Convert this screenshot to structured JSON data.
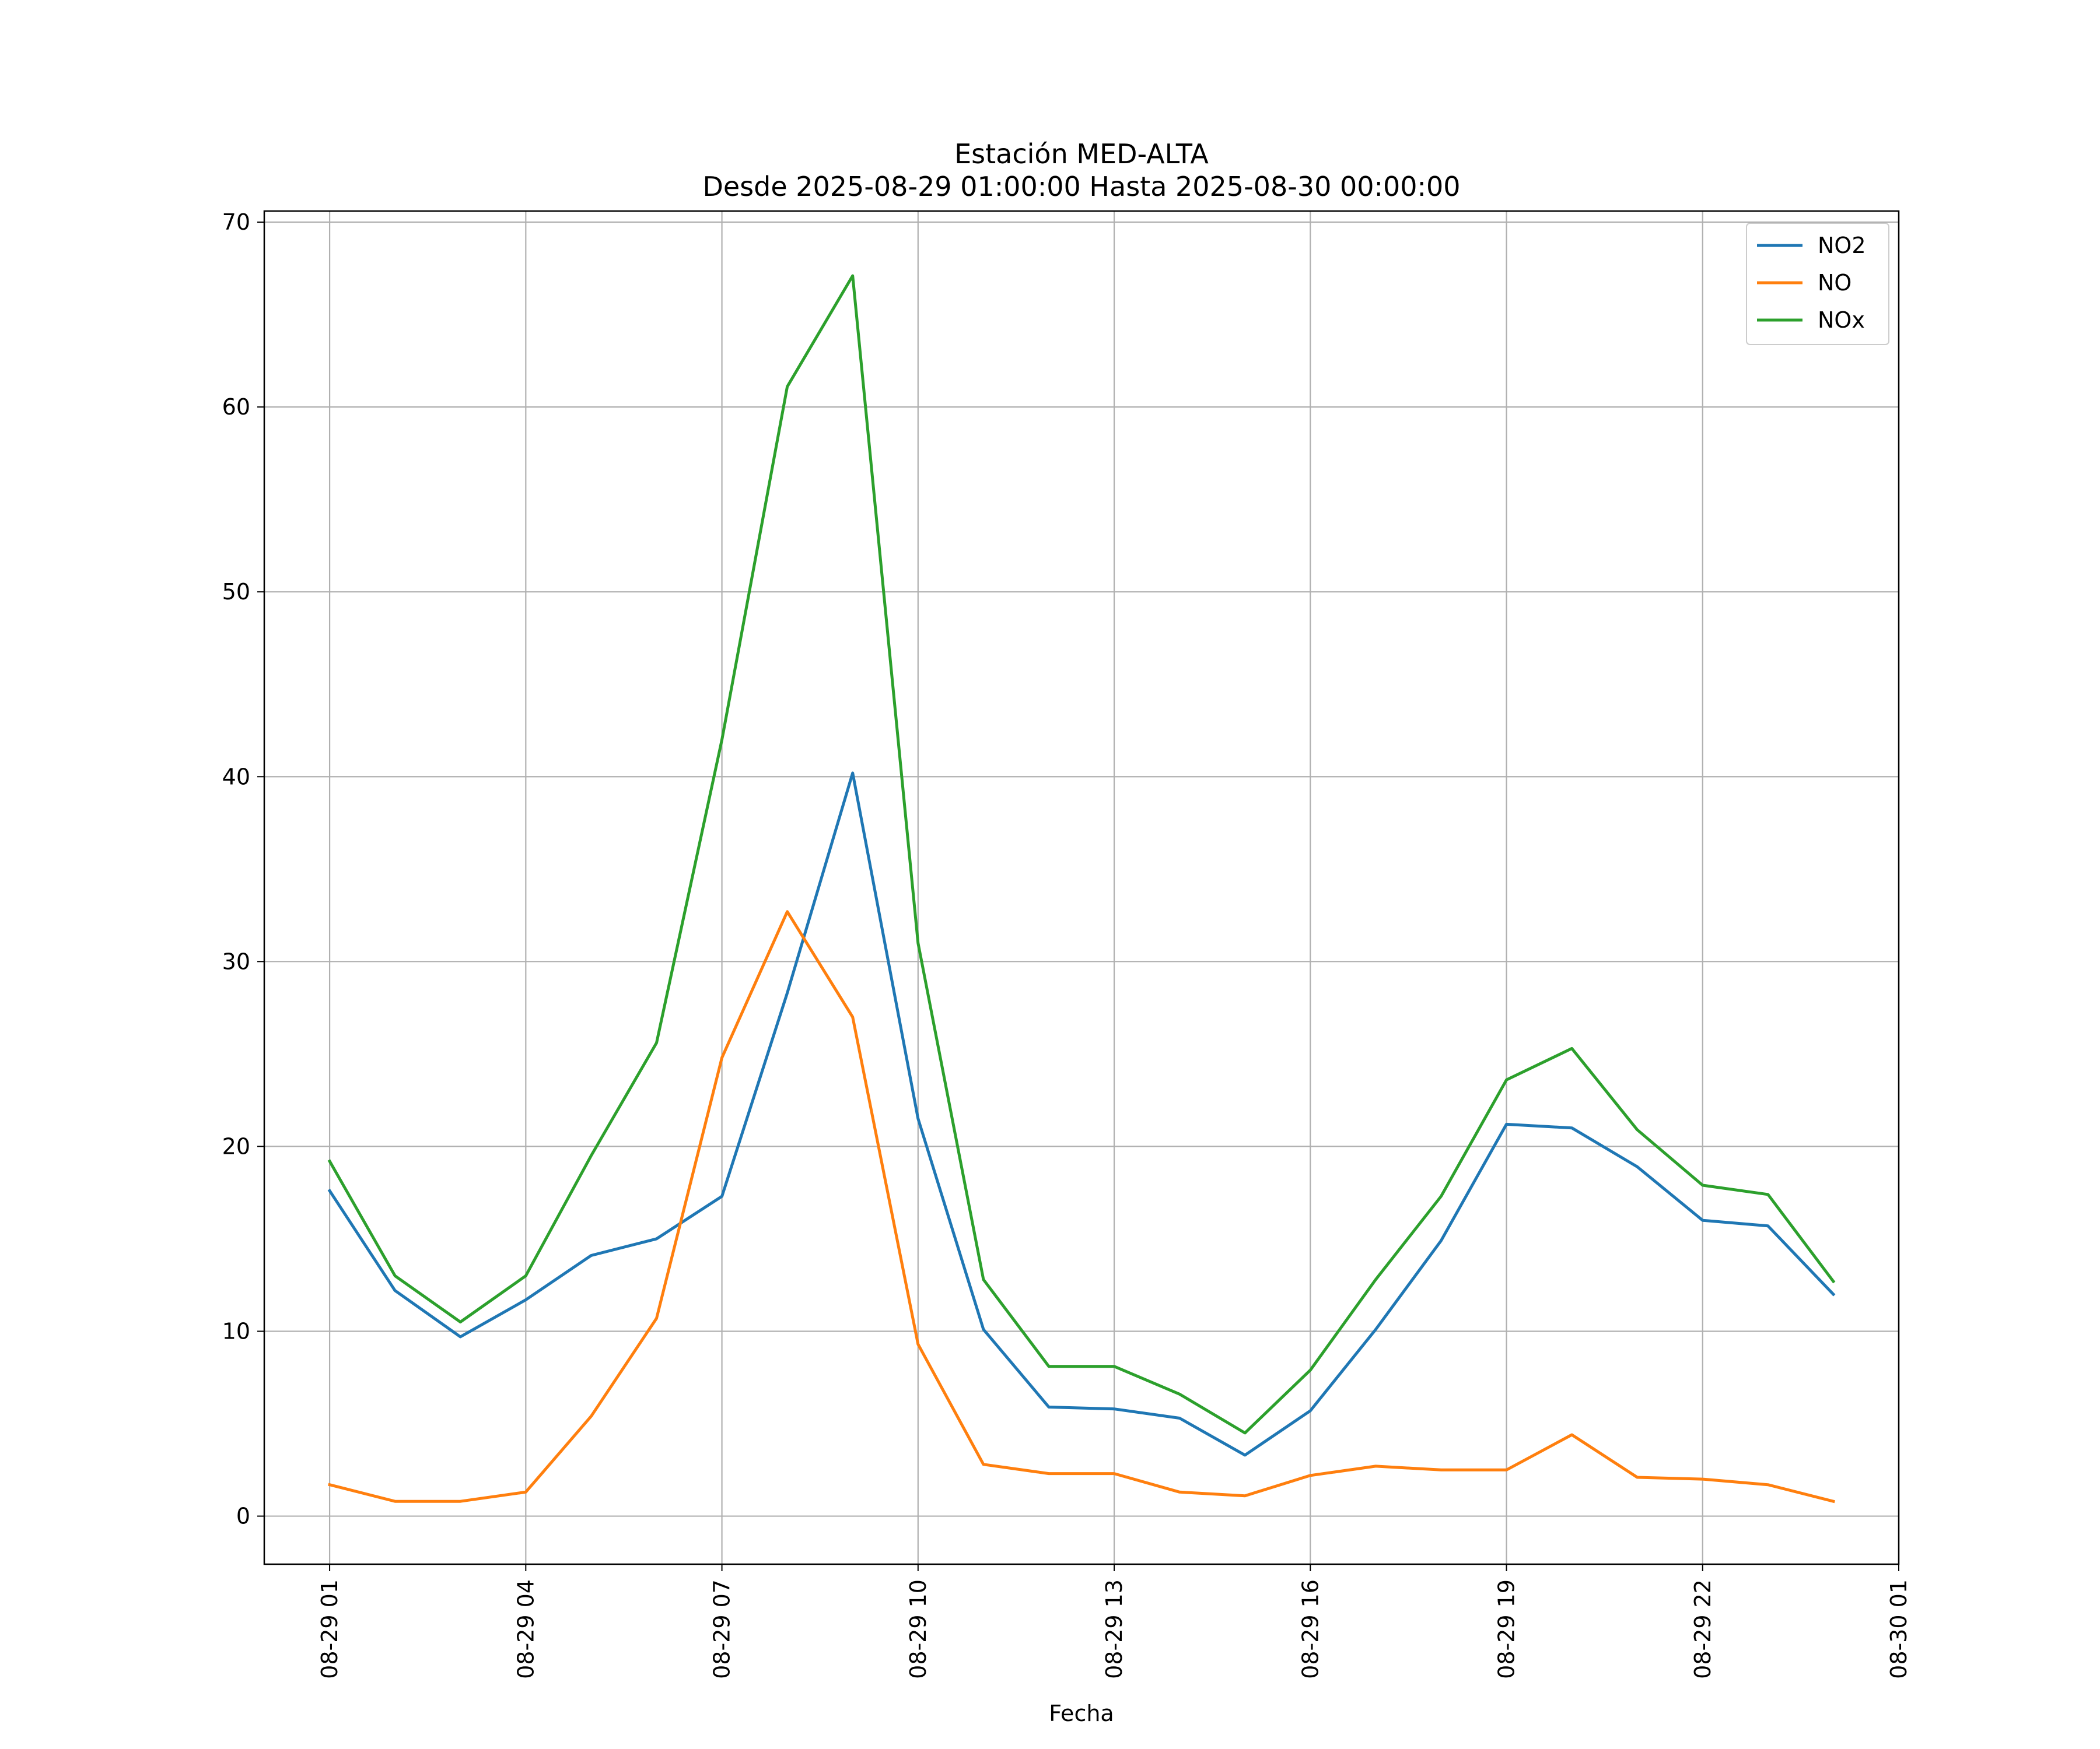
{
  "chart_data": {
    "type": "line",
    "title": "Estación MED-ALTA",
    "subtitle": "Desde 2025-08-29 01:00:00 Hasta 2025-08-30 00:00:00",
    "xlabel": "Fecha",
    "ylabel": "",
    "x": [
      "2025-08-29 01:00",
      "2025-08-29 02:00",
      "2025-08-29 03:00",
      "2025-08-29 04:00",
      "2025-08-29 05:00",
      "2025-08-29 06:00",
      "2025-08-29 07:00",
      "2025-08-29 08:00",
      "2025-08-29 09:00",
      "2025-08-29 10:00",
      "2025-08-29 11:00",
      "2025-08-29 12:00",
      "2025-08-29 13:00",
      "2025-08-29 14:00",
      "2025-08-29 15:00",
      "2025-08-29 16:00",
      "2025-08-29 17:00",
      "2025-08-29 18:00",
      "2025-08-29 19:00",
      "2025-08-29 20:00",
      "2025-08-29 21:00",
      "2025-08-29 22:00",
      "2025-08-29 23:00",
      "2025-08-30 00:00"
    ],
    "x_ticks": [
      "08-29 01",
      "08-29 04",
      "08-29 07",
      "08-29 10",
      "08-29 13",
      "08-29 16",
      "08-29 19",
      "08-29 22",
      "08-30 01"
    ],
    "y_ticks": [
      0,
      10,
      20,
      30,
      40,
      50,
      60,
      70
    ],
    "ylim": [
      -2.6,
      70.6
    ],
    "xlim": [
      "2025-08-29 00:00",
      "2025-08-30 01:00"
    ],
    "grid": true,
    "legend_position": "top-right",
    "series": [
      {
        "name": "NO2",
        "color": "#1f77b4",
        "values": [
          17.6,
          12.2,
          9.7,
          11.7,
          14.1,
          15.0,
          17.3,
          28.3,
          40.2,
          21.5,
          10.1,
          5.9,
          5.8,
          5.3,
          3.3,
          5.7,
          10.1,
          14.9,
          21.2,
          21.0,
          18.9,
          16.0,
          15.7,
          12.0
        ]
      },
      {
        "name": "NO",
        "color": "#ff7f0e",
        "values": [
          1.7,
          0.8,
          0.8,
          1.3,
          5.4,
          10.7,
          24.8,
          32.7,
          27.0,
          9.3,
          2.8,
          2.3,
          2.3,
          1.3,
          1.1,
          2.2,
          2.7,
          2.5,
          2.5,
          4.4,
          2.1,
          2.0,
          1.7,
          0.8
        ]
      },
      {
        "name": "NOx",
        "color": "#2ca02c",
        "values": [
          19.2,
          13.0,
          10.5,
          13.0,
          19.5,
          25.6,
          42.0,
          61.1,
          67.1,
          31.0,
          12.8,
          8.1,
          8.1,
          6.6,
          4.5,
          7.9,
          12.8,
          17.3,
          23.6,
          25.3,
          20.9,
          17.9,
          17.4,
          12.7
        ]
      }
    ]
  }
}
